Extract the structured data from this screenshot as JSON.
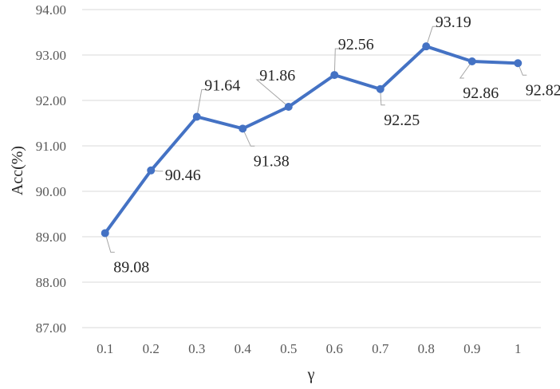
{
  "chart_data": {
    "type": "line",
    "title": "",
    "xlabel": "γ",
    "ylabel": "Acc(%)",
    "x": [
      "0.1",
      "0.2",
      "0.3",
      "0.4",
      "0.5",
      "0.6",
      "0.7",
      "0.8",
      "0.9",
      "1"
    ],
    "series": [
      {
        "values": [
          89.08,
          90.46,
          91.64,
          91.38,
          91.86,
          92.56,
          92.25,
          93.19,
          92.86,
          92.82
        ],
        "labels": [
          "89.08",
          "90.46",
          "91.64",
          "91.38",
          "91.86",
          "92.56",
          "92.25",
          "93.19",
          "92.86",
          "92.82"
        ],
        "color": "#4472c4"
      }
    ],
    "ylim": [
      87.0,
      94.0
    ],
    "yticks": [
      "87.00",
      "88.00",
      "89.00",
      "90.00",
      "91.00",
      "92.00",
      "93.00",
      "94.00"
    ],
    "grid": true,
    "legend": "none",
    "data_labels": true
  }
}
